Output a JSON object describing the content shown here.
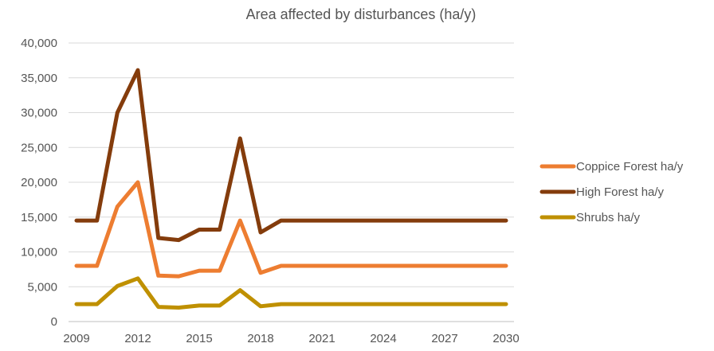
{
  "chart_data": {
    "type": "line",
    "title": "Area affected by disturbances (ha/y)",
    "xlabel": "",
    "ylabel": "",
    "x": [
      2009,
      2010,
      2011,
      2012,
      2013,
      2014,
      2015,
      2016,
      2017,
      2018,
      2019,
      2020,
      2021,
      2022,
      2023,
      2024,
      2025,
      2026,
      2027,
      2028,
      2029,
      2030
    ],
    "x_ticks": [
      2009,
      2012,
      2015,
      2018,
      2021,
      2024,
      2027,
      2030
    ],
    "x_tick_labels": [
      "2009",
      "2012",
      "2015",
      "2018",
      "2021",
      "2024",
      "2027",
      "2030"
    ],
    "ylim": [
      0,
      40000
    ],
    "y_ticks": [
      0,
      5000,
      10000,
      15000,
      20000,
      25000,
      30000,
      35000,
      40000
    ],
    "y_tick_labels": [
      "0",
      "5,000",
      "10,000",
      "15,000",
      "20,000",
      "25,000",
      "30,000",
      "35,000",
      "40,000"
    ],
    "grid": true,
    "legend_position": "right",
    "series": [
      {
        "name": "Coppice Forest ha/y",
        "color": "#ED7D31",
        "values": [
          8000,
          8000,
          16500,
          20000,
          6600,
          6500,
          7300,
          7300,
          14500,
          7000,
          8000,
          8000,
          8000,
          8000,
          8000,
          8000,
          8000,
          8000,
          8000,
          8000,
          8000,
          8000
        ]
      },
      {
        "name": "High Forest ha/y",
        "color": "#843C0C",
        "values": [
          14500,
          14500,
          30000,
          36100,
          12000,
          11700,
          13200,
          13200,
          26300,
          12800,
          14500,
          14500,
          14500,
          14500,
          14500,
          14500,
          14500,
          14500,
          14500,
          14500,
          14500,
          14500
        ]
      },
      {
        "name": "Shrubs ha/y",
        "color": "#BF9000",
        "values": [
          2500,
          2500,
          5100,
          6200,
          2100,
          2000,
          2300,
          2300,
          4500,
          2200,
          2500,
          2500,
          2500,
          2500,
          2500,
          2500,
          2500,
          2500,
          2500,
          2500,
          2500,
          2500
        ]
      }
    ]
  }
}
